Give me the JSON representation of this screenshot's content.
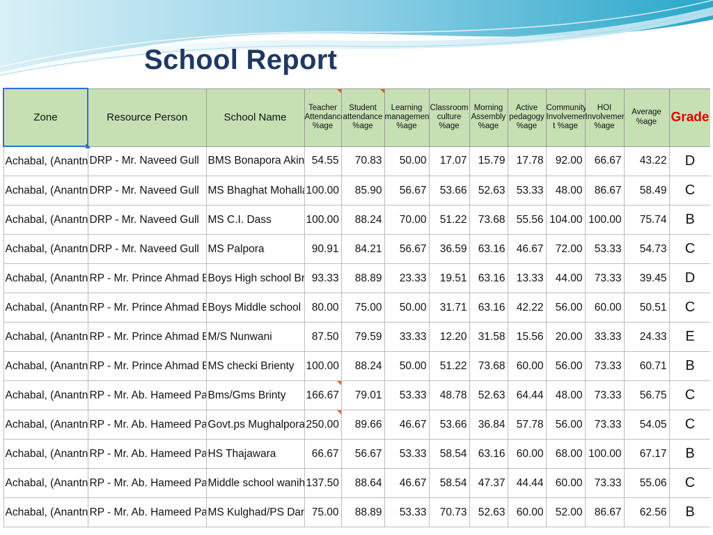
{
  "title": "School Report",
  "colors": {
    "header_fill": "#c6e0b4",
    "grade_header": "#e00000",
    "title": "#1f3864",
    "banner": "#2aa7c9"
  },
  "table": {
    "headers": {
      "zone": "Zone",
      "resource_person": "Resource Person",
      "school_name": "School Name",
      "teacher_attendance": [
        "Teacher",
        "Attendance",
        "%age"
      ],
      "student_attendance": [
        "Student",
        "attendance",
        "%age"
      ],
      "learning_management": [
        "Learning",
        "management",
        "%age"
      ],
      "classroom_culture": [
        "Classroom",
        "culture",
        "%age"
      ],
      "morning_assembly": [
        "Morning",
        "Assembly",
        "%age"
      ],
      "active_pedagogy": [
        "Active",
        "pedagogy",
        "%age"
      ],
      "community_involvement": [
        "Community",
        "Involvemen",
        "t %age"
      ],
      "hoi_involvement": [
        "HOI",
        "Involvement",
        "%age"
      ],
      "average": [
        "Average",
        "%age"
      ],
      "grade": "Grade"
    },
    "rows": [
      {
        "zone": "Achabal, (Anantnag)",
        "rp": "DRP - Mr. Naveed Gull",
        "school": "BMS Bonapora Akingam",
        "teacher": "54.55",
        "student": "70.83",
        "learning": "50.00",
        "classroom": "17.07",
        "morning": "15.79",
        "active": "17.78",
        "community": "92.00",
        "hoi": "66.67",
        "average": "43.22",
        "grade": "D"
      },
      {
        "zone": "Achabal, (Anantnag)",
        "rp": "DRP - Mr. Naveed Gull",
        "school": "MS Bhaghat Mohalla",
        "teacher": "100.00",
        "student": "85.90",
        "learning": "56.67",
        "classroom": "53.66",
        "morning": "52.63",
        "active": "53.33",
        "community": "48.00",
        "hoi": "86.67",
        "average": "58.49",
        "grade": "C"
      },
      {
        "zone": "Achabal, (Anantnag)",
        "rp": "DRP - Mr. Naveed Gull",
        "school": "MS C.I. Dass",
        "teacher": "100.00",
        "student": "88.24",
        "learning": "70.00",
        "classroom": "51.22",
        "morning": "73.68",
        "active": "55.56",
        "community": "104.00",
        "hoi": "100.00",
        "average": "75.74",
        "grade": "B"
      },
      {
        "zone": "Achabal, (Anantnag)",
        "rp": "DRP - Mr. Naveed Gull",
        "school": "MS Palpora",
        "teacher": "90.91",
        "student": "84.21",
        "learning": "56.67",
        "classroom": "36.59",
        "morning": "63.16",
        "active": "46.67",
        "community": "72.00",
        "hoi": "53.33",
        "average": "54.73",
        "grade": "C"
      },
      {
        "zone": "Achabal, (Anantnag)",
        "rp": "RP -  Mr. Prince Ahmad Bhat",
        "school": "Boys High school Brakpora",
        "teacher": "93.33",
        "student": "88.89",
        "learning": "23.33",
        "classroom": "19.51",
        "morning": "63.16",
        "active": "13.33",
        "community": "44.00",
        "hoi": "73.33",
        "average": "39.45",
        "grade": "D"
      },
      {
        "zone": "Achabal, (Anantnag)",
        "rp": "RP -  Mr. Prince Ahmad Bhat",
        "school": "Boys Middle school Dailgam",
        "teacher": "80.00",
        "student": "75.00",
        "learning": "50.00",
        "classroom": "31.71",
        "morning": "63.16",
        "active": "42.22",
        "community": "56.00",
        "hoi": "60.00",
        "average": "50.51",
        "grade": "C"
      },
      {
        "zone": "Achabal, (Anantnag)",
        "rp": "RP -  Mr. Prince Ahmad Bhat",
        "school": "M/S Nunwani",
        "teacher": "87.50",
        "student": "79.59",
        "learning": "33.33",
        "classroom": "12.20",
        "morning": "31.58",
        "active": "15.56",
        "community": "20.00",
        "hoi": "33.33",
        "average": "24.33",
        "grade": "E"
      },
      {
        "zone": "Achabal, (Anantnag)",
        "rp": "RP -  Mr. Prince Ahmad Bhat",
        "school": "MS checki Brienty",
        "teacher": "100.00",
        "student": "88.24",
        "learning": "50.00",
        "classroom": "51.22",
        "morning": "73.68",
        "active": "60.00",
        "community": "56.00",
        "hoi": "73.33",
        "average": "60.71",
        "grade": "B"
      },
      {
        "zone": "Achabal, (Anantnag)",
        "rp": "RP - Mr. Ab. Hameed Parry",
        "school": "Bms/Gms Brinty",
        "teacher": "166.67",
        "student": "79.01",
        "learning": "53.33",
        "classroom": "48.78",
        "morning": "52.63",
        "active": "64.44",
        "community": "48.00",
        "hoi": "73.33",
        "average": "56.75",
        "grade": "C"
      },
      {
        "zone": "Achabal, (Anantnag)",
        "rp": "RP - Mr. Ab. Hameed Parry",
        "school": "Govt.ps Mughalpora Brinty",
        "teacher": "250.00",
        "student": "89.66",
        "learning": "46.67",
        "classroom": "53.66",
        "morning": "36.84",
        "active": "57.78",
        "community": "56.00",
        "hoi": "73.33",
        "average": "54.05",
        "grade": "C"
      },
      {
        "zone": "Achabal, (Anantnag)",
        "rp": "RP - Mr. Ab. Hameed Parry",
        "school": "HS Thajawara",
        "teacher": "66.67",
        "student": "56.67",
        "learning": "53.33",
        "classroom": "58.54",
        "morning": "63.16",
        "active": "60.00",
        "community": "68.00",
        "hoi": "100.00",
        "average": "67.17",
        "grade": "B"
      },
      {
        "zone": "Achabal, (Anantnag)",
        "rp": "RP - Mr. Ab. Hameed Parry",
        "school": "Middle school wanihama",
        "teacher": "137.50",
        "student": "88.64",
        "learning": "46.67",
        "classroom": "58.54",
        "morning": "47.37",
        "active": "44.44",
        "community": "60.00",
        "hoi": "73.33",
        "average": "55.06",
        "grade": "C"
      },
      {
        "zone": "Achabal, (Anantnag)",
        "rp": "RP - Mr. Ab. Hameed Parry",
        "school": "MS Kulghad/PS Danger pora",
        "teacher": "75.00",
        "student": "88.89",
        "learning": "53.33",
        "classroom": "70.73",
        "morning": "52.63",
        "active": "60.00",
        "community": "52.00",
        "hoi": "86.67",
        "average": "62.56",
        "grade": "B"
      }
    ]
  }
}
